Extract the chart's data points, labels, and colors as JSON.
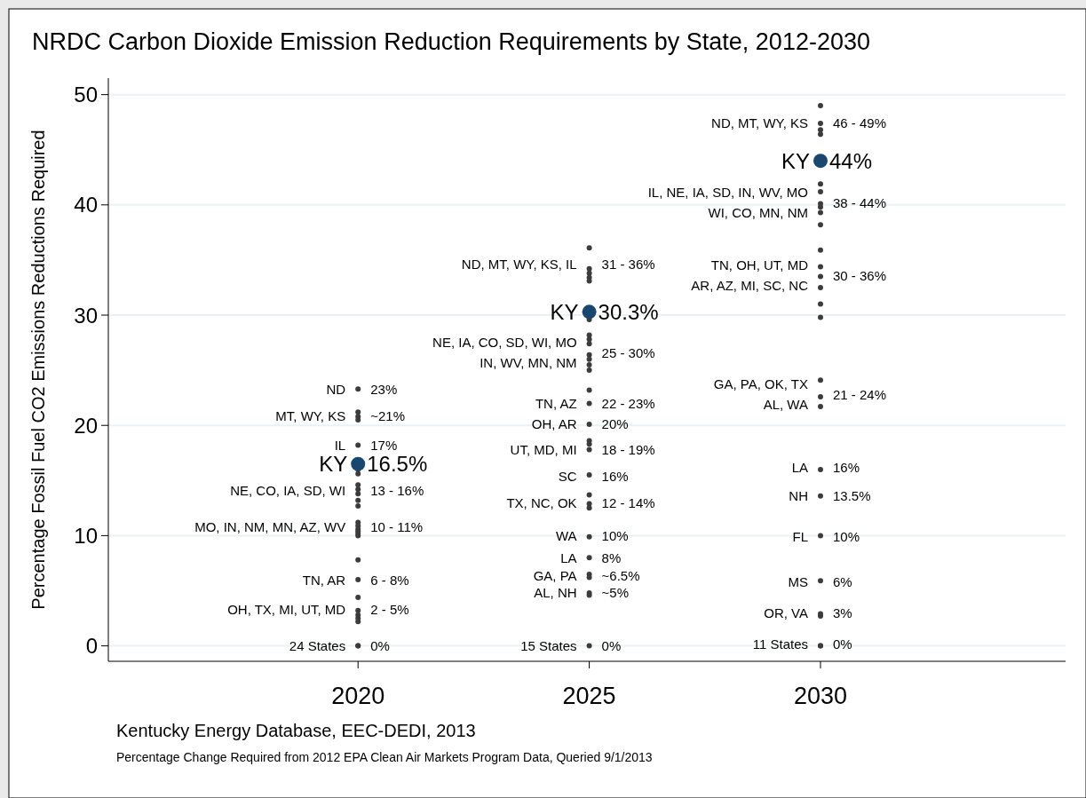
{
  "chart_data": {
    "type": "scatter",
    "title": "NRDC Carbon Dioxide Emission Reduction Requirements by State, 2012-2030",
    "ylabel": "Percentage Fossil Fuel CO2 Emissions Reductions Required",
    "xlim": [
      2014.6,
      2035.3
    ],
    "xticks": [
      2020,
      2025,
      2030
    ],
    "ylim": [
      -1.4,
      51.5
    ],
    "yticks": [
      0,
      10,
      20,
      30,
      40,
      50
    ],
    "grid": "y",
    "marker": "circle",
    "series": [
      {
        "color": "#3c3c3c",
        "x": [
          2020,
          2020,
          2020,
          2020,
          2020,
          2020,
          2020,
          2020,
          2020,
          2020,
          2020,
          2020,
          2020,
          2020,
          2020,
          2020,
          2020,
          2020,
          2020,
          2020,
          2020,
          2020,
          2020,
          2020,
          2020,
          2020,
          2020,
          2025,
          2025,
          2025,
          2025,
          2025,
          2025,
          2025,
          2025,
          2025,
          2025,
          2025,
          2025,
          2025,
          2025,
          2025,
          2025,
          2025,
          2025,
          2025,
          2025,
          2025,
          2025,
          2025,
          2025,
          2025,
          2025,
          2025,
          2025,
          2025,
          2025,
          2030,
          2030,
          2030,
          2030,
          2030,
          2030,
          2030,
          2030,
          2030,
          2030,
          2030,
          2030,
          2030,
          2030,
          2030,
          2030,
          2030,
          2030,
          2030,
          2030,
          2030,
          2030,
          2030,
          2030,
          2030,
          2030,
          2030
        ],
        "values": [
          23.3,
          21.2,
          20.8,
          20.5,
          18.2,
          16,
          15.6,
          14.6,
          14.2,
          13.8,
          13.2,
          12.7,
          11.2,
          10.9,
          10.6,
          10.4,
          10.2,
          10,
          7.8,
          6,
          4.4,
          3.2,
          2.8,
          2.5,
          2.2,
          0,
          0,
          36.1,
          34.2,
          33.8,
          33.4,
          33.1,
          29.6,
          28.2,
          27.8,
          27.4,
          26.4,
          26,
          25.5,
          25,
          23.2,
          22,
          20.1,
          18.6,
          18.3,
          17.8,
          15.5,
          13.7,
          12.9,
          12.5,
          9.9,
          8,
          6.5,
          6.2,
          4.8,
          4.6,
          0,
          49,
          47.4,
          46.8,
          46.4,
          41.9,
          41.2,
          40.1,
          39.8,
          39.3,
          38.2,
          35.9,
          34.4,
          33.5,
          32.5,
          31,
          29.8,
          24.1,
          22.6,
          21.7,
          16,
          13.6,
          10,
          5.9,
          2.9,
          2.7,
          0,
          0
        ]
      },
      {
        "color": "#1a476f",
        "x": [
          2020,
          2025,
          2030
        ],
        "values": [
          16.5,
          30.3,
          44
        ]
      }
    ],
    "annotations": [
      {
        "text": "ND",
        "x": 2020,
        "y": 23.3
      },
      {
        "text": "23%",
        "x": 2020,
        "y": 23.3
      },
      {
        "text": "MT, WY, KS",
        "x": 2020,
        "y": 20.9
      },
      {
        "text": "~21%",
        "x": 2020,
        "y": 20.9
      },
      {
        "text": "IL",
        "x": 2020,
        "y": 18.2
      },
      {
        "text": "17%",
        "x": 2020,
        "y": 18.2
      },
      {
        "text": "KY",
        "x": 2020,
        "y": 16.5
      },
      {
        "text": "16.5%",
        "x": 2020,
        "y": 16.5
      },
      {
        "text": "NE, CO, IA, SD, WI",
        "x": 2020,
        "y": 14.1
      },
      {
        "text": "13 - 16%",
        "x": 2020,
        "y": 14.1
      },
      {
        "text": "MO, IN, NM, MN, AZ, WV",
        "x": 2020,
        "y": 10.8
      },
      {
        "text": "10 - 11%",
        "x": 2020,
        "y": 10.8
      },
      {
        "text": "TN, AR",
        "x": 2020,
        "y": 6
      },
      {
        "text": "6 - 8%",
        "x": 2020,
        "y": 6
      },
      {
        "text": "OH, TX, MI, UT, MD",
        "x": 2020,
        "y": 3.3
      },
      {
        "text": "2 - 5%",
        "x": 2020,
        "y": 3.3
      },
      {
        "text": "24 States",
        "x": 2020,
        "y": 0
      },
      {
        "text": "0%",
        "x": 2020,
        "y": 0
      },
      {
        "text": "ND, MT, WY, KS, IL",
        "x": 2025,
        "y": 34.6
      },
      {
        "text": "31 - 36%",
        "x": 2025,
        "y": 34.6
      },
      {
        "text": "KY",
        "x": 2025,
        "y": 30.3
      },
      {
        "text": "30.3%",
        "x": 2025,
        "y": 30.3
      },
      {
        "text": "NE, IA, CO, SD, WI, MO\nIN, WV, MN, NM",
        "x": 2025,
        "y": 26.6
      },
      {
        "text": "25 - 30%",
        "x": 2025,
        "y": 26.6
      },
      {
        "text": "TN, AZ",
        "x": 2025,
        "y": 22
      },
      {
        "text": "22 - 23%",
        "x": 2025,
        "y": 22
      },
      {
        "text": "OH, AR",
        "x": 2025,
        "y": 20.1
      },
      {
        "text": "20%",
        "x": 2025,
        "y": 20.1
      },
      {
        "text": "UT, MD, MI",
        "x": 2025,
        "y": 17.8
      },
      {
        "text": "18 - 19%",
        "x": 2025,
        "y": 17.8
      },
      {
        "text": "SC",
        "x": 2025,
        "y": 15.4
      },
      {
        "text": "16%",
        "x": 2025,
        "y": 15.4
      },
      {
        "text": "TX, NC, OK",
        "x": 2025,
        "y": 13
      },
      {
        "text": "12 - 14%",
        "x": 2025,
        "y": 13
      },
      {
        "text": "WA",
        "x": 2025,
        "y": 10
      },
      {
        "text": "10%",
        "x": 2025,
        "y": 10
      },
      {
        "text": "LA",
        "x": 2025,
        "y": 8
      },
      {
        "text": "8%",
        "x": 2025,
        "y": 8
      },
      {
        "text": "GA, PA",
        "x": 2025,
        "y": 6.4
      },
      {
        "text": "~6.5%",
        "x": 2025,
        "y": 6.4
      },
      {
        "text": "AL, NH",
        "x": 2025,
        "y": 4.8
      },
      {
        "text": "~5%",
        "x": 2025,
        "y": 4.8
      },
      {
        "text": "15 States",
        "x": 2025,
        "y": 0
      },
      {
        "text": "0%",
        "x": 2025,
        "y": 0
      },
      {
        "text": "ND, MT, WY, KS",
        "x": 2030,
        "y": 47.4
      },
      {
        "text": "46 - 49%",
        "x": 2030,
        "y": 47.4
      },
      {
        "text": "KY",
        "x": 2030,
        "y": 44
      },
      {
        "text": "44%",
        "x": 2030,
        "y": 44
      },
      {
        "text": "IL, NE, IA, SD, IN, WV, MO\nWI, CO, MN, NM",
        "x": 2030,
        "y": 40.2
      },
      {
        "text": "38 - 44%",
        "x": 2030,
        "y": 40.2
      },
      {
        "text": "TN, OH, UT, MD\nAR, AZ, MI, SC, NC",
        "x": 2030,
        "y": 33.6
      },
      {
        "text": "30 - 36%",
        "x": 2030,
        "y": 33.6
      },
      {
        "text": "GA, PA, OK, TX\nAL, WA",
        "x": 2030,
        "y": 22.8
      },
      {
        "text": "21 - 24%",
        "x": 2030,
        "y": 22.8
      },
      {
        "text": "LA",
        "x": 2030,
        "y": 16.2
      },
      {
        "text": "16%",
        "x": 2030,
        "y": 16.2
      },
      {
        "text": "NH",
        "x": 2030,
        "y": 13.6
      },
      {
        "text": "13.5%",
        "x": 2030,
        "y": 13.6
      },
      {
        "text": "FL",
        "x": 2030,
        "y": 9.9
      },
      {
        "text": "10%",
        "x": 2030,
        "y": 9.9
      },
      {
        "text": "MS",
        "x": 2030,
        "y": 5.8
      },
      {
        "text": "6%",
        "x": 2030,
        "y": 5.8
      },
      {
        "text": "OR, VA",
        "x": 2030,
        "y": 3
      },
      {
        "text": "3%",
        "x": 2030,
        "y": 3
      },
      {
        "text": "11 States",
        "x": 2030,
        "y": 0.2
      },
      {
        "text": "0%",
        "x": 2030,
        "y": 0.2
      },
      "Kentucky Energy Database, EEC-DEDI, 2013",
      "Percentage Change Required from 2012 EPA Clean Air Markets Program Data, Queried 9/1/2013"
    ]
  }
}
